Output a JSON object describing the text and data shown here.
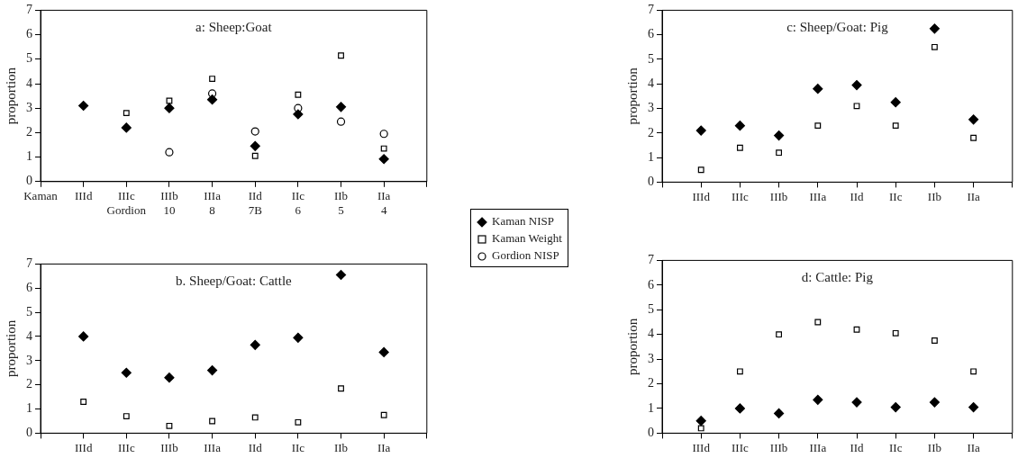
{
  "chart_data": [
    {
      "type": "scatter",
      "title": "a: Sheep:Goat",
      "ylabel": "proportion",
      "categories": [
        "Kaman",
        "IIId",
        "IIIc\nGordion",
        "IIIb\n10",
        "IIIa\n8",
        "IId\n7B",
        "IIc\n6",
        "IIb\n5",
        "IIa\n4",
        null
      ],
      "ylim": [
        0,
        7
      ],
      "yticks": [
        0,
        1,
        2,
        3,
        4,
        5,
        6,
        7
      ],
      "grid": false,
      "legend": "right",
      "series": [
        {
          "name": "Kaman NISP",
          "color": "#000000",
          "marker": "diamond",
          "values": [
            null,
            3.1,
            2.2,
            3.0,
            3.35,
            1.45,
            2.75,
            3.05,
            0.92,
            null
          ]
        },
        {
          "name": "Kaman Weight",
          "color": "#000000",
          "marker": "square",
          "values": [
            null,
            null,
            2.8,
            3.3,
            4.2,
            1.05,
            3.55,
            5.15,
            1.35,
            null
          ]
        },
        {
          "name": "Gordion NISP",
          "color": "#000000",
          "marker": "circle",
          "values": [
            null,
            null,
            null,
            1.2,
            3.6,
            2.05,
            3.0,
            2.45,
            1.95,
            null
          ]
        }
      ]
    },
    {
      "type": "scatter",
      "title": "b. Sheep/Goat: Cattle",
      "ylabel": "proportion",
      "categories": [
        null,
        "IIId",
        "IIIc",
        "IIIb",
        "IIIa",
        "IId",
        "IIc",
        "IIb",
        "IIa",
        null
      ],
      "ylim": [
        0,
        7
      ],
      "yticks": [
        0,
        1,
        2,
        3,
        4,
        5,
        6,
        7
      ],
      "grid": false,
      "series": [
        {
          "color": "#000000",
          "marker": "diamond",
          "values": [
            null,
            4.0,
            2.5,
            2.3,
            2.6,
            3.65,
            3.95,
            6.55,
            3.35,
            null
          ]
        },
        {
          "color": "#000000",
          "marker": "square",
          "values": [
            null,
            1.3,
            0.7,
            0.3,
            0.5,
            0.65,
            0.45,
            1.85,
            0.75,
            null
          ]
        }
      ]
    },
    {
      "type": "scatter",
      "title": "c: Sheep/Goat: Pig",
      "ylabel": "proportion",
      "categories": [
        null,
        "IIId",
        "IIIc",
        "IIIb",
        "IIIa",
        "IId",
        "IIc",
        "IIb",
        "IIa",
        null
      ],
      "ylim": [
        0,
        7
      ],
      "yticks": [
        0,
        1,
        2,
        3,
        4,
        5,
        6,
        7
      ],
      "grid": false,
      "series": [
        {
          "color": "#000000",
          "marker": "diamond",
          "values": [
            null,
            2.1,
            2.3,
            1.9,
            3.8,
            3.95,
            3.25,
            6.25,
            2.55,
            null
          ]
        },
        {
          "color": "#000000",
          "marker": "square",
          "values": [
            null,
            0.5,
            1.4,
            1.2,
            2.3,
            3.1,
            2.3,
            5.5,
            1.8,
            null
          ]
        }
      ]
    },
    {
      "type": "scatter",
      "title": "d: Cattle: Pig",
      "ylabel": "proportion",
      "categories": [
        null,
        "IIId",
        "IIIc",
        "IIIb",
        "IIIa",
        "IId",
        "IIc",
        "IIb",
        "IIa",
        null
      ],
      "ylim": [
        0,
        7
      ],
      "yticks": [
        0,
        1,
        2,
        3,
        4,
        5,
        6,
        7
      ],
      "grid": false,
      "series": [
        {
          "color": "#000000",
          "marker": "diamond",
          "values": [
            null,
            0.5,
            1.0,
            0.8,
            1.35,
            1.25,
            1.05,
            1.25,
            1.05,
            null
          ]
        },
        {
          "color": "#000000",
          "marker": "square",
          "values": [
            null,
            0.2,
            2.5,
            4.0,
            4.5,
            4.2,
            4.05,
            3.75,
            2.5,
            null
          ]
        }
      ]
    }
  ]
}
